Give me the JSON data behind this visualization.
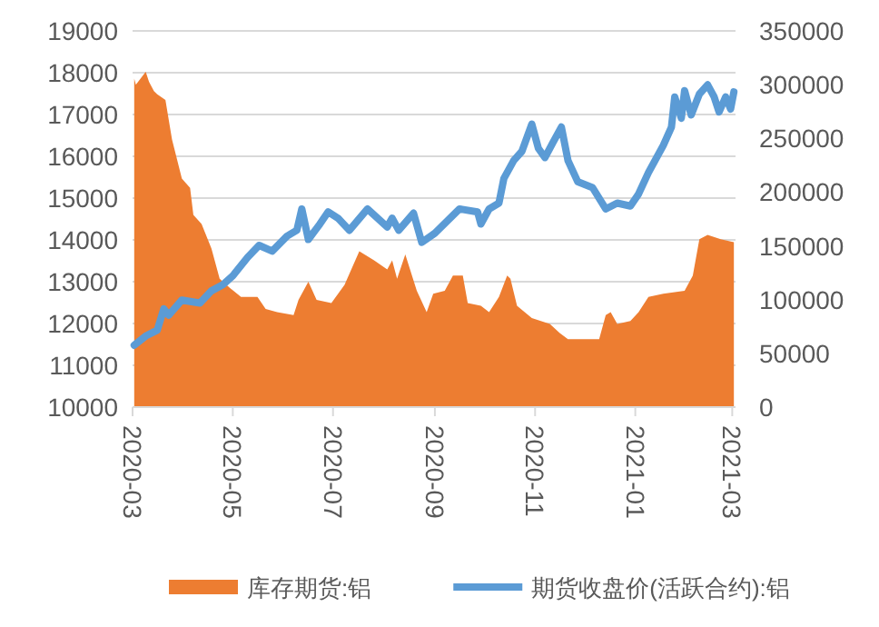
{
  "chart_data": {
    "type": "line",
    "xlim": [
      "2020-03-01",
      "2021-03-03"
    ],
    "xticks": [
      "2020-03",
      "2020-05",
      "2020-07",
      "2020-09",
      "2020-11",
      "2021-01",
      "2021-03"
    ],
    "ylim": [
      10000,
      19000
    ],
    "yticks": [
      10000,
      11000,
      12000,
      13000,
      14000,
      15000,
      16000,
      17000,
      18000,
      19000
    ],
    "y2lim": [
      0,
      350000
    ],
    "y2ticks": [
      0,
      50000,
      100000,
      150000,
      200000,
      250000,
      300000,
      350000
    ],
    "grid": "y",
    "legend": "bottom",
    "series": [
      {
        "name": "库存期货:铝",
        "type": "area",
        "axis": "y2",
        "color": "#ed7d31",
        "x": [
          "2020-03-02",
          "2020-03-03",
          "2020-03-07",
          "2020-03-09",
          "2020-03-11",
          "2020-03-14",
          "2020-03-16",
          "2020-03-21",
          "2020-03-25",
          "2020-03-31",
          "2020-04-05",
          "2020-04-07",
          "2020-04-12",
          "2020-04-18",
          "2020-04-23",
          "2020-04-29",
          "2020-05-06",
          "2020-05-16",
          "2020-05-21",
          "2020-05-28",
          "2020-06-07",
          "2020-06-10",
          "2020-06-16",
          "2020-06-21",
          "2020-06-30",
          "2020-07-08",
          "2020-07-17",
          "2020-07-26",
          "2020-08-03",
          "2020-08-06",
          "2020-08-09",
          "2020-08-14",
          "2020-08-21",
          "2020-08-27",
          "2020-08-31",
          "2020-09-07",
          "2020-09-12",
          "2020-09-18",
          "2020-09-21",
          "2020-09-29",
          "2020-10-04",
          "2020-10-10",
          "2020-10-15",
          "2020-10-17",
          "2020-10-21",
          "2020-10-30",
          "2020-11-10",
          "2020-11-16",
          "2020-11-21",
          "2020-12-10",
          "2020-12-14",
          "2020-12-17",
          "2020-12-21",
          "2020-12-29",
          "2021-01-03",
          "2021-01-09",
          "2021-01-18",
          "2021-01-31",
          "2021-02-05",
          "2021-02-09",
          "2021-02-14",
          "2021-02-22",
          "2021-03-02"
        ],
        "values": [
          305600,
          300000,
          308000,
          312000,
          302700,
          294000,
          291000,
          285800,
          249000,
          212600,
          204000,
          178700,
          170300,
          147600,
          119500,
          111100,
          102600,
          102600,
          91300,
          88400,
          85700,
          99800,
          116700,
          99800,
          96900,
          113800,
          144900,
          136500,
          128000,
          136500,
          119500,
          142000,
          108200,
          88400,
          105400,
          108200,
          122300,
          122300,
          96900,
          94200,
          88400,
          102600,
          122300,
          119500,
          94200,
          82900,
          77300,
          68800,
          63100,
          63100,
          85700,
          88400,
          77300,
          80000,
          88400,
          102600,
          105400,
          108200,
          122300,
          156100,
          160100,
          156100,
          153400
        ]
      },
      {
        "name": "期货收盘价(活跃合约):铝",
        "axis": "y",
        "color": "#5b9bd5",
        "x": [
          "2020-03-02",
          "2020-03-09",
          "2020-03-16",
          "2020-03-20",
          "2020-03-23",
          "2020-03-31",
          "2020-04-11",
          "2020-04-18",
          "2020-04-25",
          "2020-05-01",
          "2020-05-10",
          "2020-05-17",
          "2020-05-25",
          "2020-06-03",
          "2020-06-09",
          "2020-06-12",
          "2020-06-16",
          "2020-06-23",
          "2020-06-28",
          "2020-07-04",
          "2020-07-11",
          "2020-07-22",
          "2020-08-03",
          "2020-08-06",
          "2020-08-10",
          "2020-08-19",
          "2020-08-24",
          "2020-09-01",
          "2020-09-16",
          "2020-09-27",
          "2020-09-29",
          "2020-10-04",
          "2020-10-10",
          "2020-10-13",
          "2020-10-19",
          "2020-10-24",
          "2020-10-30",
          "2020-11-03",
          "2020-11-07",
          "2020-11-12",
          "2020-11-17",
          "2020-11-21",
          "2020-11-27",
          "2020-12-06",
          "2020-12-14",
          "2020-12-21",
          "2020-12-29",
          "2021-01-03",
          "2021-01-09",
          "2021-01-18",
          "2021-01-23",
          "2021-01-25",
          "2021-01-29",
          "2021-01-31",
          "2021-02-04",
          "2021-02-09",
          "2021-02-14",
          "2021-02-18",
          "2021-02-21",
          "2021-02-25",
          "2021-02-28",
          "2021-03-02"
        ],
        "values": [
          11480,
          11700,
          11840,
          12350,
          12200,
          12560,
          12490,
          12780,
          12930,
          13140,
          13580,
          13870,
          13730,
          14090,
          14230,
          14740,
          14010,
          14380,
          14670,
          14520,
          14230,
          14740,
          14310,
          14520,
          14230,
          14640,
          13940,
          14160,
          14740,
          14670,
          14380,
          14740,
          14880,
          15470,
          15900,
          16120,
          16770,
          16190,
          15970,
          16340,
          16700,
          15900,
          15390,
          15250,
          14740,
          14880,
          14810,
          15100,
          15610,
          16260,
          16700,
          17420,
          16910,
          17570,
          16990,
          17490,
          17710,
          17420,
          17060,
          17420,
          17130,
          17540
        ]
      }
    ]
  }
}
